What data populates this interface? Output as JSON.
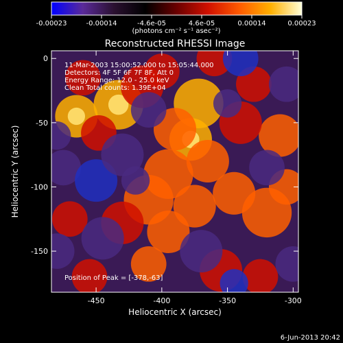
{
  "chart_data": {
    "type": "heatmap",
    "title": "Reconstructed RHESSI Image",
    "xlabel": "Heliocentric X (arcsec)",
    "ylabel": "Heliocentric Y (arcsec)",
    "xlim": [
      -484,
      -296
    ],
    "ylim": [
      -182,
      6
    ],
    "x_ticks": [
      -450,
      -400,
      -350,
      -300
    ],
    "y_ticks": [
      0,
      -50,
      -100,
      -150
    ],
    "colorbar": {
      "range": [
        -0.00023,
        0.00023
      ],
      "ticks": [
        "-0.00023",
        "-0.00014",
        "-4.6e-05",
        "4.6e-05",
        "0.00014",
        "0.00023"
      ],
      "unit_label": "(photons cm⁻² s⁻¹ asec⁻²)",
      "stops": [
        "#0000ff",
        "#5a2a99",
        "#2a1030",
        "#000000",
        "#6a0000",
        "#d01000",
        "#ff5a00",
        "#ffb000",
        "#ffffd8"
      ]
    },
    "annotations": {
      "time": "11-Mar-2003 15:00:52.000 to 15:05:44.000",
      "detectors": "Detectors: 4F 5F 6F 7F 8F, Att 0",
      "energy": "Energy Range: 12.0 - 25.0 keV",
      "clean": "Clean     Total counts: 1.39E+04",
      "peak": "Position of Peak = [-378,-63]"
    },
    "footer_date": "6-Jun-2013 20:42",
    "peak": {
      "x": -378,
      "y": -63
    },
    "blobs": [
      {
        "x": -465,
        "y": -45,
        "r": 12,
        "a": 0.9
      },
      {
        "x": -433,
        "y": -36,
        "r": 14,
        "a": 0.9
      },
      {
        "x": -448,
        "y": -58,
        "r": 10,
        "a": 0.4
      },
      {
        "x": -415,
        "y": -22,
        "r": 12,
        "a": 0.3
      },
      {
        "x": -378,
        "y": -63,
        "r": 12,
        "a": 1.0
      },
      {
        "x": -372,
        "y": -35,
        "r": 14,
        "a": 0.8
      },
      {
        "x": -390,
        "y": -55,
        "r": 12,
        "a": 0.75
      },
      {
        "x": -365,
        "y": -80,
        "r": 12,
        "a": 0.7
      },
      {
        "x": -395,
        "y": -90,
        "r": 14,
        "a": 0.7
      },
      {
        "x": -410,
        "y": -110,
        "r": 14,
        "a": 0.65
      },
      {
        "x": -375,
        "y": -115,
        "r": 12,
        "a": 0.6
      },
      {
        "x": -345,
        "y": -105,
        "r": 12,
        "a": 0.55
      },
      {
        "x": -430,
        "y": -128,
        "r": 12,
        "a": 0.5
      },
      {
        "x": -395,
        "y": -135,
        "r": 12,
        "a": 0.6
      },
      {
        "x": -320,
        "y": -120,
        "r": 14,
        "a": 0.6
      },
      {
        "x": -305,
        "y": -100,
        "r": 10,
        "a": 0.55
      },
      {
        "x": -310,
        "y": -60,
        "r": 12,
        "a": 0.55
      },
      {
        "x": -330,
        "y": -20,
        "r": 10,
        "a": 0.45
      },
      {
        "x": -340,
        "y": -50,
        "r": 12,
        "a": 0.5
      },
      {
        "x": -455,
        "y": -170,
        "r": 10,
        "a": 0.5
      },
      {
        "x": -410,
        "y": -160,
        "r": 10,
        "a": 0.55
      },
      {
        "x": -355,
        "y": -165,
        "r": 12,
        "a": 0.5
      },
      {
        "x": -325,
        "y": -170,
        "r": 10,
        "a": 0.45
      },
      {
        "x": -470,
        "y": -125,
        "r": 10,
        "a": 0.4
      },
      {
        "x": -460,
        "y": -15,
        "r": 10,
        "a": 0.35
      },
      {
        "x": -400,
        "y": -10,
        "r": 10,
        "a": 0.35
      },
      {
        "x": -360,
        "y": 0,
        "r": 10,
        "a": 0.3
      },
      {
        "x": -475,
        "y": -85,
        "r": 10,
        "a": -0.6
      },
      {
        "x": -450,
        "y": -95,
        "r": 12,
        "a": -0.7
      },
      {
        "x": -430,
        "y": -75,
        "r": 12,
        "a": -0.6
      },
      {
        "x": -410,
        "y": -40,
        "r": 10,
        "a": -0.5
      },
      {
        "x": -340,
        "y": 0,
        "r": 10,
        "a": -0.9
      },
      {
        "x": -350,
        "y": -35,
        "r": 8,
        "a": -0.5
      },
      {
        "x": -445,
        "y": -140,
        "r": 12,
        "a": -0.6
      },
      {
        "x": -480,
        "y": -150,
        "r": 10,
        "a": -0.5
      },
      {
        "x": -370,
        "y": -150,
        "r": 12,
        "a": -0.6
      },
      {
        "x": -345,
        "y": -175,
        "r": 8,
        "a": -0.9
      },
      {
        "x": -300,
        "y": -160,
        "r": 10,
        "a": -0.6
      },
      {
        "x": -305,
        "y": -20,
        "r": 10,
        "a": -0.6
      },
      {
        "x": -320,
        "y": -85,
        "r": 10,
        "a": -0.5
      },
      {
        "x": -420,
        "y": -95,
        "r": 8,
        "a": -0.4
      },
      {
        "x": -480,
        "y": -60,
        "r": 8,
        "a": -0.4
      }
    ]
  }
}
